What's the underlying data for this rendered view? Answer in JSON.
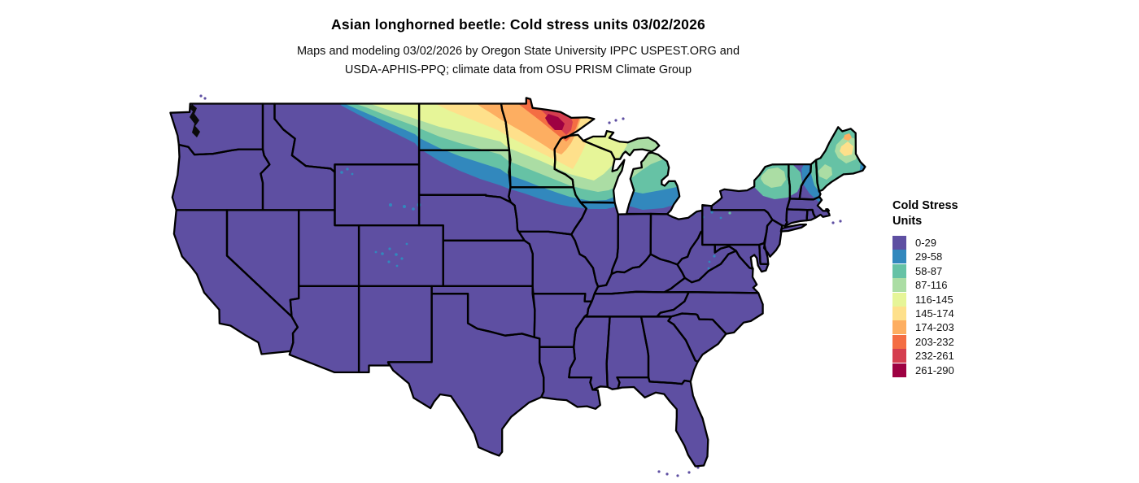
{
  "title": "Asian longhorned beetle: Cold stress units 03/02/2026",
  "subtitle_line1": "Maps and modeling 03/02/2026 by Oregon State University IPPC USPEST.ORG and",
  "subtitle_line2": "USDA-APHIS-PPQ; climate data from OSU PRISM Climate Group",
  "legend": {
    "title_line1": "Cold Stress",
    "title_line2": "Units",
    "items": [
      {
        "label": "0-29",
        "color": "#5E4FA2"
      },
      {
        "label": "29-58",
        "color": "#3288BD"
      },
      {
        "label": "58-87",
        "color": "#66C2A5"
      },
      {
        "label": "87-116",
        "color": "#ABDDA4"
      },
      {
        "label": "116-145",
        "color": "#E6F598"
      },
      {
        "label": "145-174",
        "color": "#FEE08B"
      },
      {
        "label": "174-203",
        "color": "#FDAE61"
      },
      {
        "label": "203-232",
        "color": "#F46D43"
      },
      {
        "label": "232-261",
        "color": "#D53E4F"
      },
      {
        "label": "261-290",
        "color": "#9E0142"
      }
    ]
  },
  "map": {
    "outline_color": "#000000",
    "water_color": "#FFFFFF",
    "base_bin": "0-29"
  },
  "chart_data": {
    "type": "choropleth_map",
    "title": "Asian longhorned beetle: Cold stress units 03/02/2026",
    "region": "Contiguous United States with state boundaries",
    "variable": "Cold Stress Units",
    "date": "03/02/2026",
    "legend_position": "right",
    "bins": [
      "0-29",
      "29-58",
      "58-87",
      "87-116",
      "116-145",
      "145-174",
      "174-203",
      "203-232",
      "232-261",
      "261-290"
    ],
    "palette": [
      "#5E4FA2",
      "#3288BD",
      "#66C2A5",
      "#ABDDA4",
      "#E6F598",
      "#FEE08B",
      "#FDAE61",
      "#F46D43",
      "#D53E4F",
      "#9E0142"
    ],
    "regional_values": [
      {
        "area": "Southern, western, central and mid-Atlantic US (most of the country)",
        "cold_stress_units": "0-29"
      },
      {
        "area": "Diagonal band across eastern Montana into western Dakotas",
        "cold_stress_units": "29-87"
      },
      {
        "area": "North Dakota, north and east portions",
        "cold_stress_units": "87-174"
      },
      {
        "area": "Northeastern North Dakota corner",
        "cold_stress_units": "174-232"
      },
      {
        "area": "Northwestern and northern Minnesota",
        "cold_stress_units": "174-261"
      },
      {
        "area": "North-central Minnesota maximum (hot spot)",
        "cold_stress_units": "232-290"
      },
      {
        "area": "Southern Minnesota, central/northern Wisconsin, Michigan Upper Peninsula",
        "cold_stress_units": "58-145"
      },
      {
        "area": "Northern Lower Michigan",
        "cold_stress_units": "29-87"
      },
      {
        "area": "Adirondacks region of northern New York",
        "cold_stress_units": "58-116"
      },
      {
        "area": "Northern New England (Vermont, New Hampshire, Maine interior)",
        "cold_stress_units": "29-174"
      },
      {
        "area": "Scattered high-elevation Rocky Mountain pixels (WY, CO, MT)",
        "cold_stress_units": "29-58"
      }
    ]
  }
}
